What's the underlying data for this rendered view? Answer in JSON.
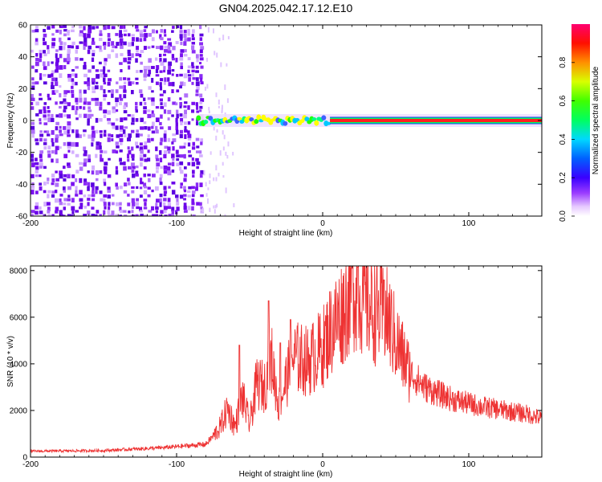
{
  "figure_title": "GN04.2025.042.17.12.E10",
  "chart_data": [
    {
      "type": "heatmap",
      "xlabel": "Height of straight line (km)",
      "ylabel": "Frequency (Hz)",
      "xlim": [
        -200,
        150
      ],
      "ylim": [
        -60,
        60
      ],
      "xticks": [
        -200,
        -100,
        0,
        100
      ],
      "yticks": [
        -60,
        -40,
        -20,
        0,
        20,
        40,
        60
      ],
      "colorbar": {
        "label": "Normalized spectral amplitude",
        "range": [
          0,
          1
        ],
        "ticks": [
          0.0,
          0.2,
          0.4,
          0.6,
          0.8
        ],
        "colormap": [
          "#ffffff",
          "#e6c8ff",
          "#9b3cff",
          "#6a00e8",
          "#0000ff",
          "#00c8ff",
          "#00ff80",
          "#40ff00",
          "#ffff00",
          "#ff8000",
          "#ff0000",
          "#ff0060"
        ]
      },
      "description_regions": {
        "noise_band_x": [
          -200,
          -83
        ],
        "signal_line_x": [
          -85,
          150
        ],
        "signal_line_freq": 0
      }
    },
    {
      "type": "line",
      "xlabel": "Height of straight line (km)",
      "ylabel": "SNR (10 * v/v)",
      "xlim": [
        -200,
        150
      ],
      "ylim": [
        0,
        8200
      ],
      "xticks": [
        -200,
        -100,
        0,
        100
      ],
      "yticks": [
        0,
        2000,
        4000,
        6000,
        8000
      ],
      "color": "#ee3333",
      "envelope": {
        "x": [
          -200,
          -150,
          -110,
          -90,
          -80,
          -75,
          -70,
          -65,
          -60,
          -55,
          -50,
          -45,
          -40,
          -35,
          -30,
          -25,
          -20,
          -15,
          -10,
          -5,
          0,
          5,
          10,
          15,
          20,
          25,
          30,
          35,
          40,
          45,
          50,
          55,
          60,
          70,
          80,
          90,
          100,
          110,
          120,
          130,
          140,
          150
        ],
        "y": [
          250,
          280,
          400,
          500,
          550,
          900,
          1300,
          2100,
          1300,
          2600,
          1400,
          3200,
          3000,
          4200,
          2200,
          3300,
          4300,
          4200,
          4100,
          4400,
          4700,
          5400,
          5900,
          6400,
          7200,
          7100,
          6600,
          6300,
          6100,
          5900,
          5000,
          4300,
          3600,
          3000,
          2700,
          2450,
          2300,
          2150,
          2050,
          1950,
          1850,
          1650
        ]
      },
      "spikes": [
        {
          "x": -57,
          "y": 4800
        },
        {
          "x": -37,
          "y": 6700
        },
        {
          "x": -29,
          "y": 4900
        },
        {
          "x": -22,
          "y": 5900
        },
        {
          "x": 20,
          "y": 8100
        },
        {
          "x": 24,
          "y": 8150
        },
        {
          "x": 42,
          "y": 7600
        }
      ]
    }
  ]
}
